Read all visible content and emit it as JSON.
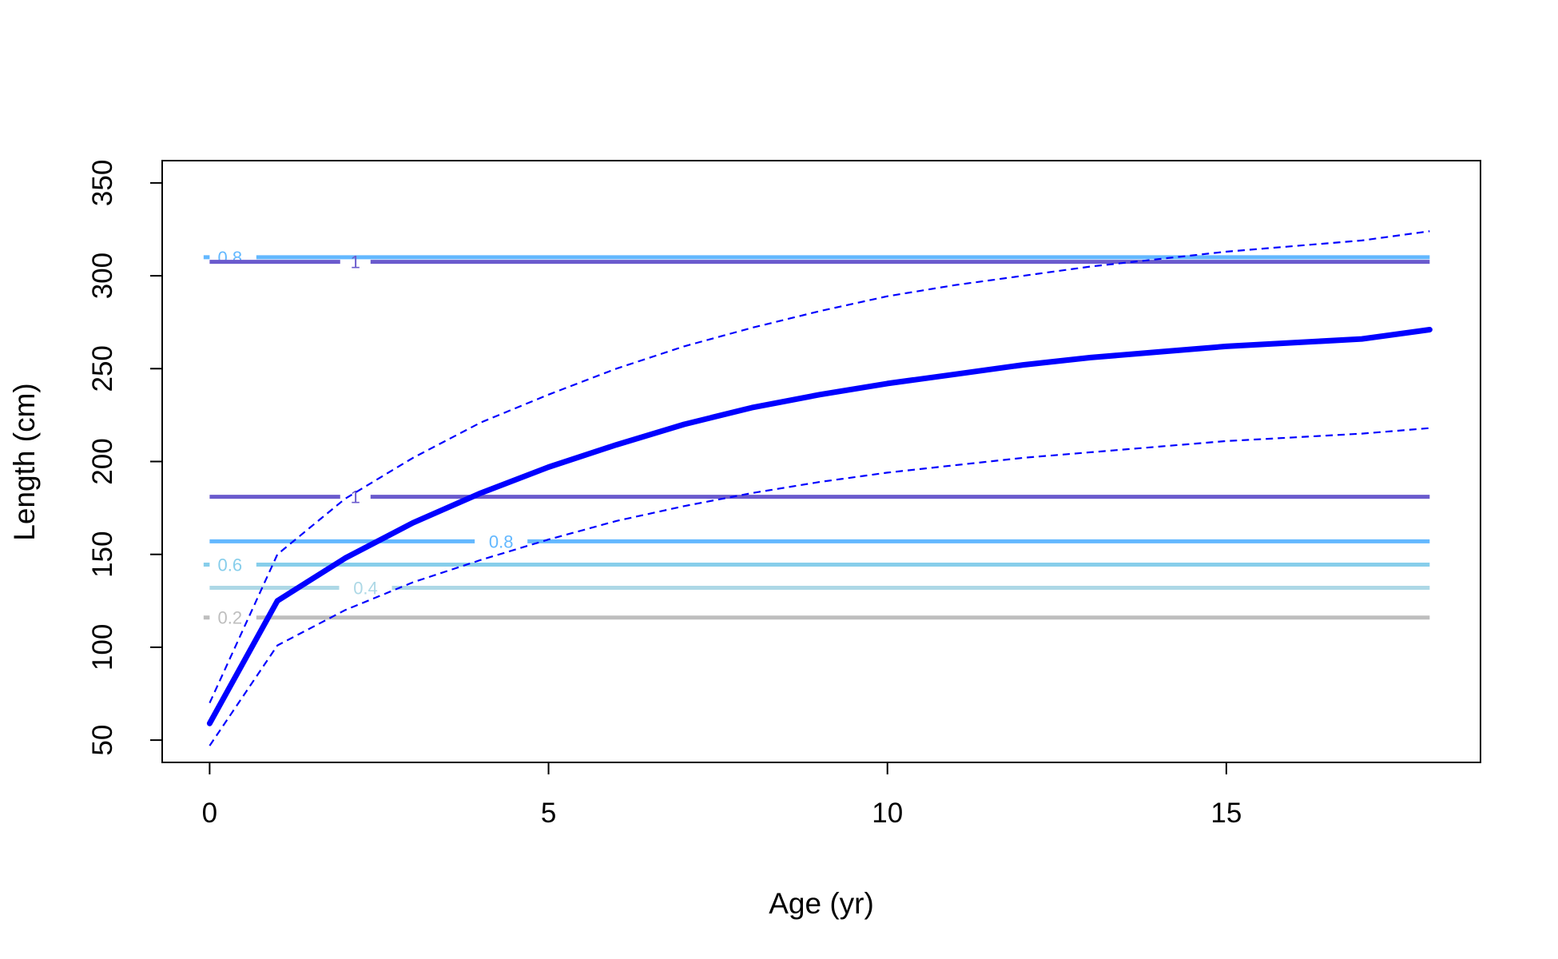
{
  "chart_data": {
    "type": "line",
    "xlabel": "Age (yr)",
    "ylabel": "Length (cm)",
    "xlim": [
      -0.7,
      18.75
    ],
    "ylim": [
      38,
      362
    ],
    "xticks": [
      0,
      5,
      10,
      15
    ],
    "yticks": [
      50,
      100,
      150,
      200,
      250,
      300,
      350
    ],
    "grid": false,
    "series": [
      {
        "role": "mean",
        "style": "solid-thick",
        "color": "#0000ff",
        "x": [
          0,
          1,
          2,
          3,
          4,
          5,
          6,
          7,
          8,
          9,
          10,
          11,
          12,
          13,
          14,
          15,
          16,
          17,
          18
        ],
        "y": [
          59,
          125,
          148,
          167,
          183,
          197,
          209,
          220,
          229,
          236,
          242,
          247,
          252,
          256,
          259,
          262,
          264,
          266,
          271
        ]
      },
      {
        "role": "upper",
        "style": "dashed",
        "color": "#0000ff",
        "x": [
          0,
          1,
          2,
          3,
          4,
          5,
          6,
          7,
          8,
          9,
          10,
          11,
          12,
          13,
          14,
          15,
          16,
          17,
          18
        ],
        "y": [
          70,
          150,
          180,
          202,
          221,
          236,
          250,
          262,
          272,
          281,
          289,
          295,
          300,
          305,
          309,
          313,
          316,
          319,
          324
        ]
      },
      {
        "role": "lower",
        "style": "dashed",
        "color": "#0000ff",
        "x": [
          0,
          1,
          2,
          3,
          4,
          5,
          6,
          7,
          8,
          9,
          10,
          11,
          12,
          13,
          14,
          15,
          16,
          17,
          18
        ],
        "y": [
          47,
          101,
          120,
          135,
          147,
          158,
          168,
          176,
          183,
          189,
          194,
          198,
          202,
          205,
          208,
          211,
          213,
          215,
          218
        ]
      }
    ],
    "contours": [
      {
        "y": 116,
        "label": "0.2",
        "color": "#bebebe",
        "label_age": 0.3
      },
      {
        "y": 132,
        "label": "0.4",
        "color": "#add8e6",
        "label_age": 2.3
      },
      {
        "y": 144.5,
        "label": "0.6",
        "color": "#87ceeb",
        "label_age": 0.3
      },
      {
        "y": 157,
        "label": "0.8",
        "color": "#63b8ff",
        "label_age": 4.3
      },
      {
        "y": 181,
        "label": "1",
        "color": "#6a5acd",
        "label_age": 2.15
      },
      {
        "y": 310,
        "label": "0.8",
        "color": "#63b8ff",
        "label_age": 0.3
      },
      {
        "y": 307.5,
        "label": "1",
        "color": "#6a5acd",
        "label_age": 2.15
      }
    ]
  }
}
